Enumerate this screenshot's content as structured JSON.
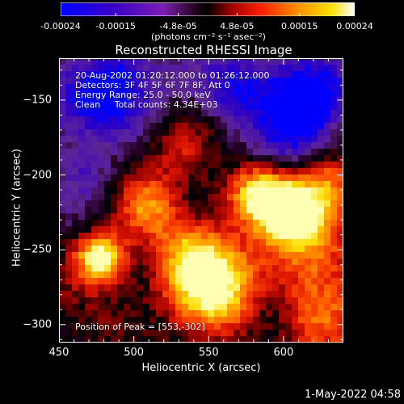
{
  "chart_data": {
    "type": "heatmap",
    "title": "Reconstructed RHESSI Image",
    "xlabel": "Heliocentric X (arcsec)",
    "ylabel": "Heliocentric Y (arcsec)",
    "xlim": [
      450,
      640
    ],
    "ylim": [
      -312,
      -122
    ],
    "xticks": [
      "450",
      "500",
      "550",
      "600"
    ],
    "xtick_values": [
      450,
      500,
      550,
      600
    ],
    "yticks": [
      "-150",
      "-200",
      "-250",
      "-300"
    ],
    "ytick_values": [
      -150,
      -200,
      -250,
      -300
    ],
    "colorbar": {
      "min": -0.00024,
      "max": 0.00024,
      "tick_labels": [
        "-0.00024",
        "-0.00015",
        "-4.8e-05",
        "4.8e-05",
        "0.00015",
        "0.00024"
      ],
      "tick_values": [
        -0.00024,
        -0.00015,
        -4.8e-05,
        4.8e-05,
        0.00015,
        0.00024
      ],
      "units": "(photons cm⁻² s⁻¹ asec⁻²)",
      "colormap": [
        "#0000ff",
        "#4b0082",
        "#8a2be2",
        "#000000",
        "#b00000",
        "#ff2000",
        "#ff9000",
        "#ffe000",
        "#ffffff"
      ]
    },
    "annotations": [
      "20-Aug-2002 01:20:12.000 to 01:26:12.000",
      "Detectors: 3F 4F 5F 6F 7F 8F, Att 0",
      "Energy Range: 25.0 - 50.0 keV",
      "Clean     Total counts: 4.34E+03"
    ],
    "peak_label": "Position of Peak = [553,-302]",
    "peak": [
      553,
      -302
    ]
  },
  "footer": {
    "timestamp": "1-May-2022 04:58"
  }
}
